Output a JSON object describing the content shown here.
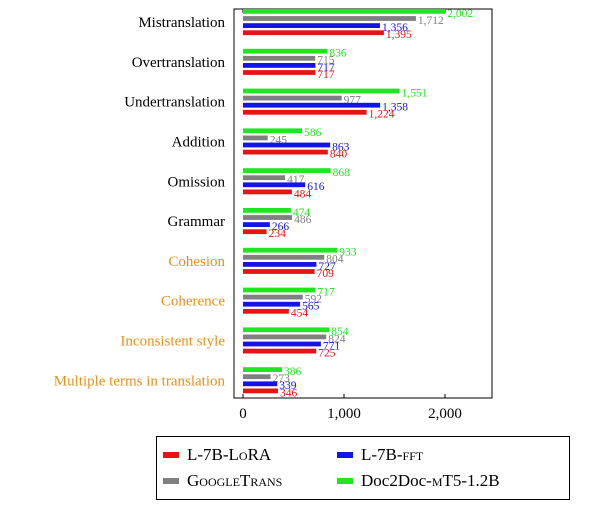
{
  "chart_data": {
    "type": "bar",
    "orientation": "horizontal",
    "xlim": [
      0,
      2500
    ],
    "xticks": [
      0,
      1000,
      2000
    ],
    "xtick_labels": [
      "0",
      "1,000",
      "2,000"
    ],
    "xlabel": "",
    "categories": [
      "Mistranslation",
      "Overtranslation",
      "Undertranslation",
      "Addition",
      "Omission",
      "Grammar",
      "Cohesion",
      "Coherence",
      "Inconsistent style",
      "Multiple terms in translation"
    ],
    "category_colors": [
      "#000000",
      "#000000",
      "#000000",
      "#000000",
      "#000000",
      "#000000",
      "#e8901a",
      "#e8901a",
      "#e8901a",
      "#e8901a"
    ],
    "series": [
      {
        "name": "Doc2Doc-mT5-1.2B",
        "color": "#1fe61f",
        "values": [
          2002,
          836,
          1551,
          586,
          868,
          474,
          933,
          717,
          854,
          386
        ]
      },
      {
        "name": "GoogleTrans",
        "color": "#808080",
        "values": [
          1712,
          715,
          977,
          245,
          417,
          486,
          804,
          592,
          824,
          273
        ]
      },
      {
        "name": "L-7B-fft",
        "color": "#1414e6",
        "values": [
          1356,
          717,
          1358,
          863,
          616,
          266,
          727,
          565,
          771,
          339
        ]
      },
      {
        "name": "L-7B-LoRA",
        "color": "#e61414",
        "values": [
          1395,
          717,
          1224,
          840,
          484,
          234,
          709,
          454,
          725,
          346
        ]
      }
    ],
    "value_labels": [
      [
        "2,002",
        "836",
        "1,551",
        "586",
        "868",
        "474",
        "933",
        "717",
        "854",
        "386"
      ],
      [
        "1,712",
        "715",
        "977",
        "245",
        "417",
        "486",
        "804",
        "592",
        "824",
        "273"
      ],
      [
        "1,356",
        "717",
        "1,358",
        "863",
        "616",
        "266",
        "727",
        "565",
        "771",
        "339"
      ],
      [
        "1,395",
        "717",
        "1,224",
        "840",
        "484",
        "234",
        "709",
        "454",
        "725",
        "346"
      ]
    ],
    "legend": {
      "placement": "bottom",
      "entries": [
        {
          "base": "L-7B-",
          "sc": "LoRA",
          "color": "#e61414"
        },
        {
          "base": "L-7B-",
          "sc": "fft",
          "color": "#1414e6"
        },
        {
          "base": "",
          "sc": "GoogleTrans",
          "color": "#808080"
        },
        {
          "base": "Doc2Doc-",
          "sc": "mT5-1.2B",
          "color": "#1fe61f"
        }
      ]
    },
    "grid": false
  }
}
